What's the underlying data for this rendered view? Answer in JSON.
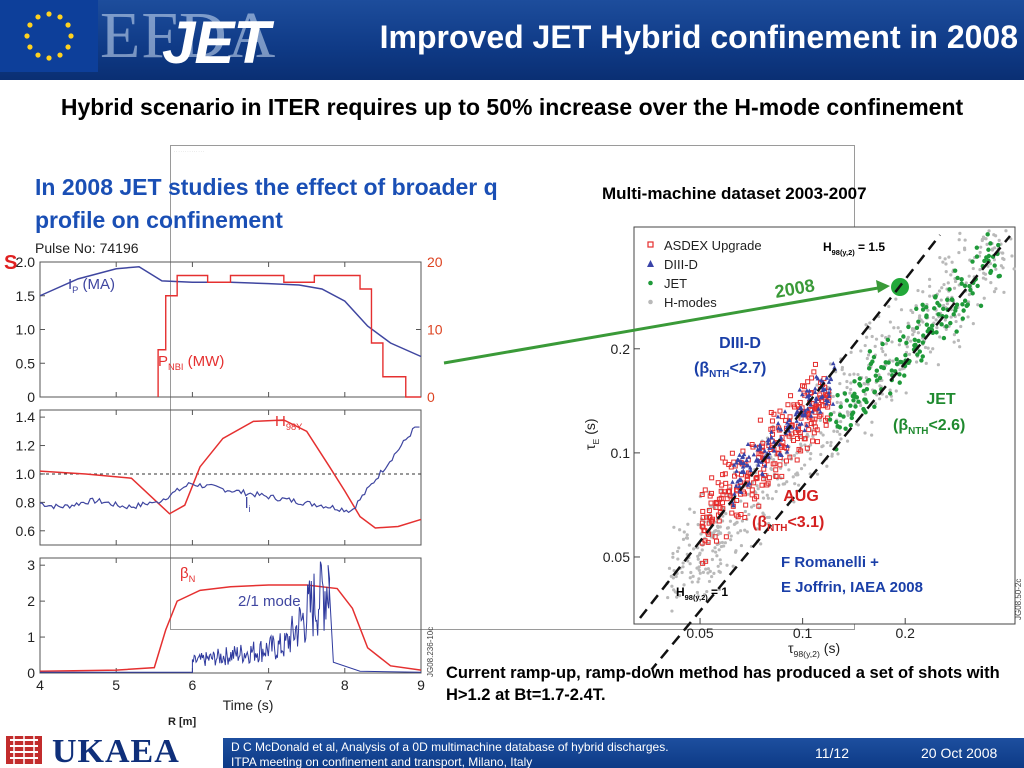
{
  "header": {
    "efda_logo": "EFDA",
    "jet_logo": "JET",
    "title": "Improved JET Hybrid confinement in 2008"
  },
  "subtitle": "Hybrid scenario in ITER requires up to 50% increase over the H-mode confinement",
  "left_heading": "In 2008 JET studies the effect of broader q profile on confinement",
  "fragments": {
    "red_left": "S",
    "r_axis": "R [m]"
  },
  "left_figure": {
    "pulse": "Pulse No: 74196",
    "xlabel": "Time (s)",
    "ref_tag": "JG08.236-10c",
    "panel1": {
      "left_ticks": [
        "2.0",
        "1.5",
        "1.0",
        "0.5",
        "0"
      ],
      "right_ticks": [
        "20",
        "10",
        "0"
      ],
      "ip_label": "I",
      "ip_sub": "P",
      "ip_unit": " (MA)",
      "pnbi_label": "P",
      "pnbi_sub": "NBI",
      "pnbi_unit": " (MW)"
    },
    "panel2": {
      "ticks": [
        "1.4",
        "1.2",
        "1.0",
        "0.8",
        "0.6"
      ],
      "h_label": "H",
      "h_sub": "98Y",
      "li_label": "l",
      "li_sub": "i"
    },
    "panel3": {
      "ticks": [
        "3",
        "2",
        "1",
        "0"
      ],
      "beta_label": "β",
      "beta_sub": "N",
      "mode_label": "2/1 mode"
    },
    "x_ticks": [
      "4",
      "5",
      "6",
      "7",
      "8",
      "9"
    ]
  },
  "right_figure": {
    "caption": "Multi-machine dataset 2003-2007",
    "legend": [
      "ASDEX Upgrade",
      "DIII-D",
      "JET",
      "H-modes"
    ],
    "y_ticks": [
      "0.2",
      "0.1",
      "0.05"
    ],
    "x_ticks": [
      "0.05",
      "0.1",
      "0.2"
    ],
    "ylabel": "τ",
    "ylabel_sub": "E",
    "ylabel_unit": " (s)",
    "xlabel": "τ",
    "xlabel_sub": "98(y,2)",
    "xlabel_unit": " (s)",
    "h15_label": "H",
    "h15_sub": "98(y,2)",
    "h15_val": " = 1.5",
    "h1_label": "H",
    "h1_sub": "98(y,2)",
    "h1_val": " = 1",
    "year_2008": "2008",
    "diiid_label": "DIII-D",
    "diiid_beta": "(β",
    "diiid_beta_sub": "NTH",
    "diiid_beta_val": "<2.7)",
    "jet_label": "JET",
    "jet_beta": "(β",
    "jet_beta_sub": "NTH",
    "jet_beta_val": "<2.6)",
    "aug_label": "AUG",
    "aug_beta": "(β",
    "aug_beta_sub": "NTH",
    "aug_beta_val": "<3.1)",
    "credit_1": "F Romanelli +",
    "credit_2": "E Joffrin, IAEA 2008",
    "ref_tag": "JG08.50-2c",
    "colors": {
      "aug": "#e52d2d",
      "diiid": "#3a44a8",
      "jet": "#1f9a3a",
      "hmodes": "#b9b9b9",
      "year": "#3a9a38"
    }
  },
  "bottom_note": "Current ramp-up, ramp-down method has produced a set of shots with H>1.2 at Bt=1.7-2.4T.",
  "footer": {
    "logo": "UKAEA",
    "citation_1": "D C McDonald et al, Analysis of a 0D multimachine database of hybrid discharges.",
    "citation_2": "ITPA meeting on confinement and transport, Milano, Italy",
    "page": "11/12",
    "date": "20 Oct 2008"
  }
}
